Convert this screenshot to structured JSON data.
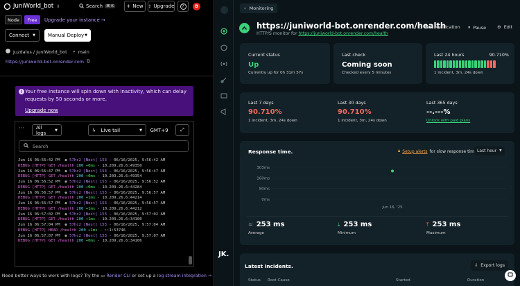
{
  "left": {
    "service_name": "JuniWorld_bot",
    "search_label": "Search",
    "search_kbd": "⌘ K",
    "new_label": "New",
    "upgrade_label": "Upgrade",
    "help_label": "?",
    "avatar_letter": "B",
    "runtime_badge": "Node",
    "plan_badge": "Free",
    "upgrade_link": "Upgrade your instance →",
    "connect_label": "Connect",
    "deploy_label": "Manual Deploy",
    "repo": "Juzdalus / JuniWorld_bot",
    "branch": "main",
    "url": "https://juniworld-bot.onrender.com",
    "banner_text": "Your free instance will spin down with inactivity, which can delay requests by 50 seconds or more.",
    "banner_link": "Upgrade now",
    "log_filter": "All logs",
    "live_tail": "Live tail",
    "timezone": "GMT+9",
    "log_search_placeholder": "Search",
    "footer_text": "Need better ways to work with logs? Try the",
    "footer_cli": "Render CLI",
    "footer_mid": "or set up a",
    "footer_stream": "log stream integration →",
    "logs": [
      {
        "ts": "Jun 16 06:56:42 PM",
        "id": "57hc2",
        "tag": "[Nest] 153",
        "dash": "-",
        "date": "06/16/2025, 9:56:42 AM",
        "lvl": "DEBUG",
        "http": "[HTTP]",
        "method": "GET",
        "path": "/health",
        "code": "200",
        "ms": "+0ms",
        "rest": "- 10.209.26.6:49350"
      },
      {
        "ts": "Jun 16 06:56:47 PM",
        "id": "57hc2",
        "tag": "[Nest] 153",
        "dash": "-",
        "date": "06/16/2025, 9:56:47 AM",
        "lvl": "DEBUG",
        "http": "[HTTP]",
        "method": "GET",
        "path": "/health",
        "code": "200",
        "ms": "+0ms",
        "rest": "- 10.209.26.6:49354"
      },
      {
        "ts": "Jun 16 06:56:52 PM",
        "id": "57hc2",
        "tag": "[Nest] 153",
        "dash": "-",
        "date": "06/16/2025, 9:56:52 AM",
        "lvl": "DEBUG",
        "http": "[HTTP]",
        "method": "GET",
        "path": "/health",
        "code": "200",
        "ms": "+0ms",
        "rest": "- 10.209.26.6:44284"
      },
      {
        "ts": "Jun 16 06:56:57 PM",
        "id": "57hc2",
        "tag": "[Nest] 153",
        "dash": "-",
        "date": "06/16/2025, 9:56:57 AM",
        "lvl": "DEBUG",
        "http": "[HTTP]",
        "method": "GET",
        "path": "/health",
        "code": "200",
        "ms": "+1ms",
        "rest": "- 10.209.26.6:44214"
      },
      {
        "ts": "Jun 16 06:56:57 PM",
        "id": "57hc2",
        "tag": "[Nest] 153",
        "dash": "-",
        "date": "06/16/2025, 9:56:57 AM",
        "lvl": "DEBUG",
        "http": "[HTTP]",
        "method": "GET",
        "path": "/health",
        "code": "200",
        "ms": "+1ms",
        "rest": "- 10.209.26.6:44212"
      },
      {
        "ts": "Jun 16 06:57:02 PM",
        "id": "57hc2",
        "tag": "[Nest] 153",
        "dash": "-",
        "date": "06/16/2025, 9:57:02 AM",
        "lvl": "DEBUG",
        "http": "[HTTP]",
        "method": "GET",
        "path": "/health",
        "code": "200",
        "ms": "+1ms",
        "rest": "- 10.209.26.6:34100"
      },
      {
        "ts": "Jun 16 06:57:04 PM",
        "id": "57hc2",
        "tag": "[Nest] 153",
        "dash": "-",
        "date": "06/16/2025, 9:57:04 AM",
        "lvl": "DEBUG",
        "http": "[HTTP]",
        "method": "HEAD",
        "path": "/health",
        "code": "200",
        "ms": "+1ms",
        "rest": "- ::1:53746"
      },
      {
        "ts": "Jun 16 06:57:07 PM",
        "id": "57hc2",
        "tag": "[Nest] 153",
        "dash": "-",
        "date": "06/16/2025, 9:57:07 AM",
        "lvl": "DEBUG",
        "http": "[HTTP]",
        "method": "GET",
        "path": "/health",
        "code": "200",
        "ms": "+0ms",
        "rest": "- 10.209.26.6:34106"
      }
    ]
  },
  "right": {
    "breadcrumb": "Monitoring",
    "monitor_title": "https://juniworld-bot.onrender.com/health",
    "monitor_sub_prefix": "HTTP/S monitor for",
    "monitor_sub_link": "https://juniworld-bot.onrender.com/health",
    "test_btn": "Test Notification",
    "pause_btn": "Pause",
    "edit_btn": "Edit",
    "status_label": "Current status",
    "status_value": "Up",
    "status_sub": "Currently up for 0h 31m 57s",
    "lastcheck_label": "Last check",
    "lastcheck_value": "Coming soon",
    "lastcheck_sub": "Checked every 5 minutes",
    "h24_label": "Last 24 hours",
    "h24_pct": "90.710%",
    "h24_sub": "1 incident, 3m, 24s down",
    "h24_bars": {
      "total": 20,
      "green": 17,
      "red": 3
    },
    "d7_label": "Last 7 days",
    "d7_value": "90.710%",
    "d7_sub": "1 incident, 3m, 24s down",
    "d30_label": "Last 30 days",
    "d30_value": "90.710%",
    "d30_sub": "1 incident, 3m, 24s down",
    "d365_label": "Last 365 days",
    "d365_value": "--.---%",
    "d365_link": "Unlock with paid plans",
    "rt_title": "Response time.",
    "rt_alert_link": "Setup alerts",
    "rt_alert_rest": "for slow response times",
    "rt_range": "Last hour",
    "rt_date": "Jun 16, '25",
    "avg_value": "253 ms",
    "avg_label": "Average",
    "min_value": "253 ms",
    "min_label": "Minimum",
    "max_value": "253 ms",
    "max_label": "Maximum",
    "incidents_title": "Latest incidents.",
    "export_btn": "Export logs",
    "col_status": "Status",
    "col_root": "Root Cause",
    "col_started": "Started",
    "col_duration": "Duration",
    "avatar_text": "JK."
  },
  "chart_data": {
    "type": "scatter",
    "title": "Response time.",
    "x": [
      "Jun 16, '25"
    ],
    "y": [
      253
    ],
    "yticks": [
      "303ms",
      "160ms",
      "80ms",
      "0ms"
    ],
    "ylabel": "",
    "xlabel": ""
  }
}
